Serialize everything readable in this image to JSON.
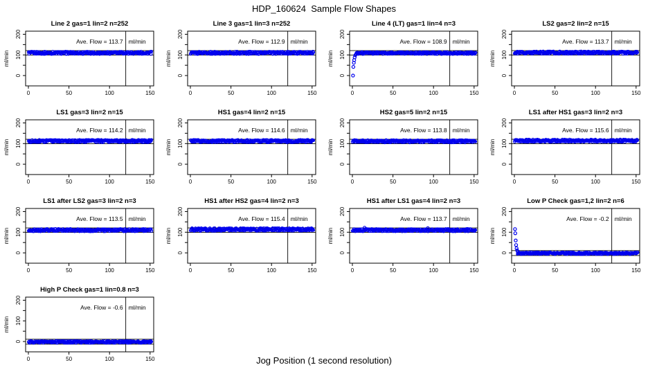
{
  "figure": {
    "title": "HDP_160624  Sample Flow Shapes",
    "xlabel": "Jog Position (1 second resolution)"
  },
  "chart_data": {
    "type": "scatter",
    "layout": {
      "title": "HDP_160624  Sample Flow Shapes",
      "xlabel": "Jog Position (1 second resolution)",
      "ylabel": "ml/min",
      "rows": 4,
      "cols": 4,
      "grid": false,
      "xlim": [
        -6,
        158
      ],
      "ylim": [
        -50,
        215
      ],
      "xticks": [
        0,
        50,
        100,
        150
      ],
      "xtick_labels": [
        "0",
        "50",
        "100",
        "150"
      ],
      "yticks_labeled": [
        0,
        100,
        200
      ],
      "ytick_labels": [
        "0",
        "100",
        "200"
      ],
      "yticks_minor": [
        50,
        150
      ],
      "vline_x": 120,
      "flow_label": "Ave. Flow =",
      "point_color": "#0000EE",
      "line_color": "#000000"
    },
    "plots": [
      {
        "title": "Line 2 gas=1 lin=2 n=252",
        "ave_flow": "113.7",
        "unit": "ml/min",
        "band": {
          "level": 110,
          "halfwidth": 6,
          "x_start": 0.3,
          "x_end": 152
        },
        "ref_lines": [
          99,
          121
        ],
        "start_points": [],
        "outliers": []
      },
      {
        "title": "Line 3 gas=1 lin=3 n=252",
        "ave_flow": "112.9",
        "unit": "ml/min",
        "band": {
          "level": 110,
          "halfwidth": 6,
          "x_start": 0.3,
          "x_end": 152
        },
        "ref_lines": [
          99,
          121
        ],
        "start_points": [],
        "outliers": []
      },
      {
        "title": "Line 4 (LT) gas=1 lin=4 n=3",
        "ave_flow": "108.9",
        "unit": "ml/min",
        "band": {
          "level": 109,
          "halfwidth": 5,
          "x_start": 5,
          "x_end": 152
        },
        "ref_lines": [
          99,
          121
        ],
        "start_points": [
          [
            0.8,
            0
          ],
          [
            1.2,
            42
          ],
          [
            1.8,
            62
          ],
          [
            2.2,
            75
          ],
          [
            2.8,
            88
          ],
          [
            3.5,
            98
          ],
          [
            4.5,
            104
          ]
        ],
        "outliers": []
      },
      {
        "title": "LS2 gas=2 lin=2 n=15",
        "ave_flow": "113.7",
        "unit": "ml/min",
        "band": {
          "level": 111,
          "halfwidth": 6,
          "x_start": 0.3,
          "x_end": 152
        },
        "ref_lines": [
          99,
          121
        ],
        "start_points": [],
        "outliers": []
      },
      {
        "title": "LS1 gas=3 lin=2 n=15",
        "ave_flow": "114.2",
        "unit": "ml/min",
        "band": {
          "level": 112,
          "halfwidth": 6,
          "x_start": 0.3,
          "x_end": 152
        },
        "ref_lines": [
          99,
          121
        ],
        "start_points": [],
        "outliers": []
      },
      {
        "title": "HS1 gas=4 lin=2 n=15",
        "ave_flow": "114.6",
        "unit": "ml/min",
        "band": {
          "level": 112,
          "halfwidth": 6,
          "x_start": 0.3,
          "x_end": 152
        },
        "ref_lines": [
          99,
          121
        ],
        "start_points": [],
        "outliers": []
      },
      {
        "title": "HS2 gas=5 lin=2 n=15",
        "ave_flow": "113.8",
        "unit": "ml/min",
        "band": {
          "level": 111,
          "halfwidth": 6,
          "x_start": 0.3,
          "x_end": 152
        },
        "ref_lines": [
          99,
          121
        ],
        "start_points": [],
        "outliers": []
      },
      {
        "title": "LS1 after HS1 gas=3 lin=2 n=3",
        "ave_flow": "115.6",
        "unit": "ml/min",
        "band": {
          "level": 114,
          "halfwidth": 6,
          "x_start": 0.3,
          "x_end": 152
        },
        "ref_lines": [
          99,
          121
        ],
        "start_points": [],
        "outliers": []
      },
      {
        "title": "LS1 after LS2 gas=3 lin=2 n=3",
        "ave_flow": "113.5",
        "unit": "ml/min",
        "band": {
          "level": 110,
          "halfwidth": 6,
          "x_start": 0.3,
          "x_end": 152
        },
        "ref_lines": [
          99,
          121
        ],
        "start_points": [],
        "outliers": []
      },
      {
        "title": "HS1 after HS2 gas=4 lin=2 n=3",
        "ave_flow": "115.4",
        "unit": "ml/min",
        "band": {
          "level": 113,
          "halfwidth": 7,
          "x_start": 0.3,
          "x_end": 152
        },
        "ref_lines": [
          99,
          121
        ],
        "start_points": [],
        "outliers": []
      },
      {
        "title": "HS1 after LS1 gas=4 lin=2 n=3",
        "ave_flow": "113.7",
        "unit": "ml/min",
        "band": {
          "level": 110,
          "halfwidth": 6,
          "x_start": 0.3,
          "x_end": 152
        },
        "ref_lines": [
          99,
          121
        ],
        "start_points": [],
        "outliers": [
          [
            15,
            122
          ],
          [
            93,
            120
          ]
        ]
      },
      {
        "title": "Low P Check gas=1,2 lin=2 n=6",
        "ave_flow": "-0.2",
        "unit": "ml/min",
        "band": {
          "level": -2,
          "halfwidth": 5,
          "x_start": 4,
          "x_end": 152
        },
        "ref_lines": [
          -13,
          11
        ],
        "start_points": [
          [
            0.8,
            115
          ],
          [
            1.1,
            95
          ],
          [
            1.6,
            60
          ],
          [
            2.1,
            38
          ],
          [
            2.7,
            22
          ],
          [
            3.4,
            12
          ],
          [
            4.2,
            6
          ]
        ],
        "outliers": []
      },
      {
        "title": "High P Check gas=1 lin=0.8 n=3",
        "ave_flow": "-0.6",
        "unit": "ml/min",
        "band": {
          "level": -2,
          "halfwidth": 5,
          "x_start": 0.3,
          "x_end": 152
        },
        "ref_lines": [
          -13,
          11
        ],
        "start_points": [],
        "outliers": []
      }
    ]
  }
}
